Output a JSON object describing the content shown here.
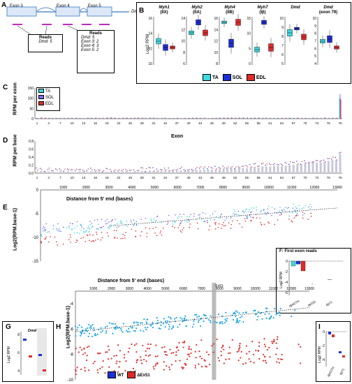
{
  "panels": {
    "A": {
      "label": "A",
      "exons": [
        "Exon 3",
        "Exon 4",
        "Exon 5"
      ],
      "gene": "Dmd",
      "reads_left": {
        "title": "Reads",
        "lines": [
          "Dmd: 5"
        ]
      },
      "reads_right": {
        "title": "Reads",
        "lines": [
          "Dmd: 5",
          "Exon 3: 2",
          "Exon 4: 3",
          "Exon 5: 2"
        ]
      }
    },
    "B": {
      "label": "B",
      "genes": [
        {
          "name": "Myh1",
          "sub": "(IIX)",
          "yticks": [
            "16",
            "14",
            "12",
            "10"
          ]
        },
        {
          "name": "Myh2",
          "sub": "(IIA)",
          "yticks": [
            "14",
            "12",
            "10",
            "8",
            "6"
          ]
        },
        {
          "name": "Myh4",
          "sub": "(IIB)",
          "yticks": [
            "16",
            "14",
            "12",
            "10",
            "8"
          ]
        },
        {
          "name": "Myh7",
          "sub": "(Iβ)",
          "yticks": [
            "15",
            "10",
            "5",
            "0"
          ]
        },
        {
          "name": "Dmd",
          "sub": "",
          "yticks": [
            "10",
            "9",
            "8",
            "7",
            "6",
            "5"
          ]
        },
        {
          "name": "Dmd",
          "sub": "(exon 79)",
          "yticks": [
            "10",
            "9",
            "8",
            "7",
            "6",
            "5",
            "4"
          ]
        }
      ],
      "ylabel": "Log2 RPM",
      "legend": [
        {
          "name": "TA",
          "color": "#3fd8e0"
        },
        {
          "name": "SOL",
          "color": "#1d2fd6"
        },
        {
          "name": "EDL",
          "color": "#e02a2a"
        }
      ]
    },
    "C": {
      "label": "C",
      "ylabel": "RPM per exon",
      "xlabel": "Exon",
      "yticks": [
        "150",
        "100",
        "50",
        "0"
      ],
      "xticks": [
        "1",
        "4",
        "7",
        "10",
        "13",
        "16",
        "19",
        "22",
        "25",
        "28",
        "31",
        "34",
        "37",
        "40",
        "43",
        "46",
        "49",
        "52",
        "55",
        "58",
        "61",
        "64",
        "67",
        "70",
        "73",
        "76",
        "79"
      ],
      "legend": [
        "TA",
        "SOL",
        "EDL"
      ],
      "chart_data": {
        "type": "bar",
        "x": [
          1,
          79
        ],
        "series": [
          {
            "name": "TA",
            "values": [
              5,
              100
            ]
          },
          {
            "name": "SOL",
            "values": [
              5,
              120
            ]
          },
          {
            "name": "EDL",
            "values": [
              5,
              95
            ]
          }
        ],
        "ylim": [
          0,
          150
        ]
      }
    },
    "D": {
      "label": "D",
      "ylabel": "RPM per base",
      "yticks": [
        "0.8",
        "0.6",
        "0.4",
        "0.2",
        "0.0"
      ],
      "xticks": [
        "1",
        "4",
        "7",
        "10",
        "13",
        "16",
        "19",
        "22",
        "25",
        "28",
        "31",
        "34",
        "37",
        "40",
        "43",
        "46",
        "49",
        "52",
        "55",
        "58",
        "61",
        "64",
        "67",
        "70",
        "73",
        "76",
        "79"
      ]
    },
    "E": {
      "label": "E",
      "xlabel": "Distance from 5' end (bases)",
      "ylabel": "Log2(RPM.base-1)",
      "yticks": [
        "0",
        "-5",
        "-10",
        "-15"
      ],
      "xticks": [
        "1000",
        "2000",
        "3000",
        "4000",
        "5000",
        "6000",
        "7000",
        "8000",
        "9000",
        "10000",
        "11000",
        "12000",
        "13000"
      ]
    },
    "F": {
      "label": "F: First exon reads",
      "ylabel": "Log2 RPM",
      "yticks": [
        "0",
        "-2",
        "-4",
        "-6"
      ],
      "categories": [
        "dp427m",
        "dp116",
        "dp71"
      ]
    },
    "G": {
      "label": "G",
      "headers": [
        "Dmd",
        "exon 79"
      ],
      "ylabel": "Log2 RPM",
      "yticks": [
        "8",
        "6",
        "4"
      ]
    },
    "H": {
      "label": "H",
      "xlabel": "Distance from 5' end (bases)",
      "ylabel": "Log2(RPM.base-1)",
      "yticks": [
        "-4",
        "-6",
        "-8",
        "-10"
      ],
      "xticks": [
        "1000",
        "2000",
        "3000",
        "4000",
        "5000",
        "6000",
        "7000",
        "8000",
        "9000",
        "10000",
        "11000",
        "12000",
        "13000"
      ],
      "marker": "Ex51",
      "legend": [
        {
          "name": "WT",
          "color": "#1d2fd6"
        },
        {
          "name": "ΔEx51",
          "color": "#e02a2a"
        }
      ]
    },
    "I": {
      "label": "I",
      "ylabel": "Log2 RPM",
      "yticks": [
        "0",
        "-2",
        "-4"
      ],
      "categories": [
        "dp427m",
        "dp71"
      ]
    }
  },
  "chart_data": [
    {
      "type": "bar",
      "title": "RPM per exon",
      "xlabel": "Exon",
      "ylabel": "RPM per exon",
      "ylim": [
        0,
        150
      ],
      "series": [
        {
          "name": "TA",
          "values": [
            5,
            100
          ]
        },
        {
          "name": "SOL",
          "values": [
            5,
            120
          ]
        },
        {
          "name": "EDL",
          "values": [
            5,
            95
          ]
        }
      ],
      "x": [
        1,
        79
      ]
    },
    {
      "type": "scatter",
      "xlabel": "Distance from 5' end (bases)",
      "ylabel": "Log2(RPM.base-1)",
      "xlim": [
        0,
        13000
      ],
      "ylim": [
        -15,
        0
      ],
      "series": [
        {
          "name": "TA",
          "x": [
            0,
            13000
          ],
          "y": [
            -9,
            -3
          ]
        },
        {
          "name": "SOL",
          "x": [
            0,
            13000
          ],
          "y": [
            -8,
            -4
          ]
        },
        {
          "name": "EDL",
          "x": [
            0,
            13000
          ],
          "y": [
            -11,
            -5
          ]
        }
      ]
    },
    {
      "type": "scatter",
      "xlabel": "Distance from 5' end (bases)",
      "ylabel": "Log2(RPM.base-1)",
      "xlim": [
        0,
        13000
      ],
      "ylim": [
        -10,
        -3
      ],
      "series": [
        {
          "name": "WT",
          "x": [
            0,
            12500
          ],
          "y": [
            -6.2,
            -4.5
          ]
        },
        {
          "name": "ΔEx51",
          "x": [
            0,
            12500
          ],
          "y": [
            -8.5,
            -7.5
          ]
        }
      ]
    }
  ]
}
